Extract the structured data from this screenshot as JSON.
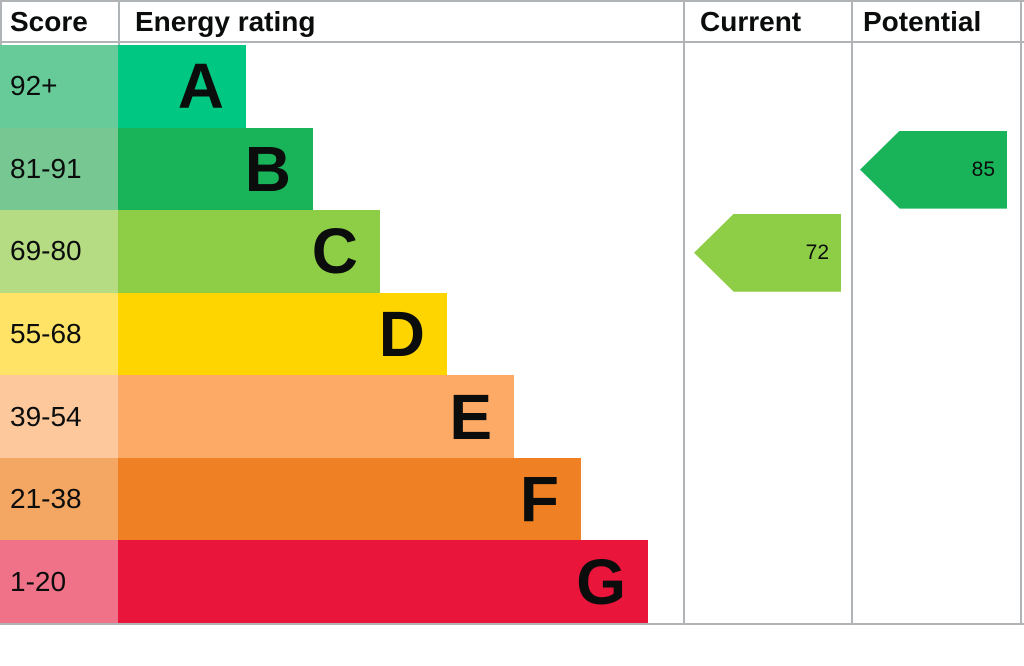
{
  "header": {
    "score": "Score",
    "energy_rating": "Energy rating",
    "current": "Current",
    "potential": "Potential"
  },
  "bands": [
    {
      "score": "92+",
      "letter": "A",
      "color": "#00c781",
      "score_color": "#66cb98"
    },
    {
      "score": "81-91",
      "letter": "B",
      "color": "#19b459",
      "score_color": "#76c791"
    },
    {
      "score": "69-80",
      "letter": "C",
      "color": "#8dce46",
      "score_color": "#b5dc82"
    },
    {
      "score": "55-68",
      "letter": "D",
      "color": "#ffd500",
      "score_color": "#ffe366"
    },
    {
      "score": "39-54",
      "letter": "E",
      "color": "#fcaa65",
      "score_color": "#fcc89c"
    },
    {
      "score": "21-38",
      "letter": "F",
      "color": "#ef8023",
      "score_color": "#f3a763"
    },
    {
      "score": "1-20",
      "letter": "G",
      "color": "#e9153b",
      "score_color": "#ef7288"
    }
  ],
  "current": {
    "value": "72",
    "band": "C",
    "color": "#8dce46"
  },
  "potential": {
    "value": "85",
    "band": "B",
    "color": "#19b459"
  },
  "colors": {
    "border": "#b1b4b6",
    "text": "#0b0c0c"
  },
  "chart_data": {
    "type": "bar",
    "title": "Energy rating",
    "columns": [
      "Score",
      "Energy rating",
      "Current",
      "Potential"
    ],
    "categories": [
      "A",
      "B",
      "C",
      "D",
      "E",
      "F",
      "G"
    ],
    "score_ranges": [
      "92+",
      "81-91",
      "69-80",
      "55-68",
      "39-54",
      "21-38",
      "1-20"
    ],
    "band_colors": [
      "#00c781",
      "#19b459",
      "#8dce46",
      "#ffd500",
      "#fcaa65",
      "#ef8023",
      "#e9153b"
    ],
    "bar_lengths_relative": [
      1,
      2,
      3,
      4,
      5,
      6,
      7
    ],
    "current": {
      "value": 72,
      "band": "C"
    },
    "potential": {
      "value": 85,
      "band": "B"
    },
    "legend_position": "none",
    "grid": false
  }
}
